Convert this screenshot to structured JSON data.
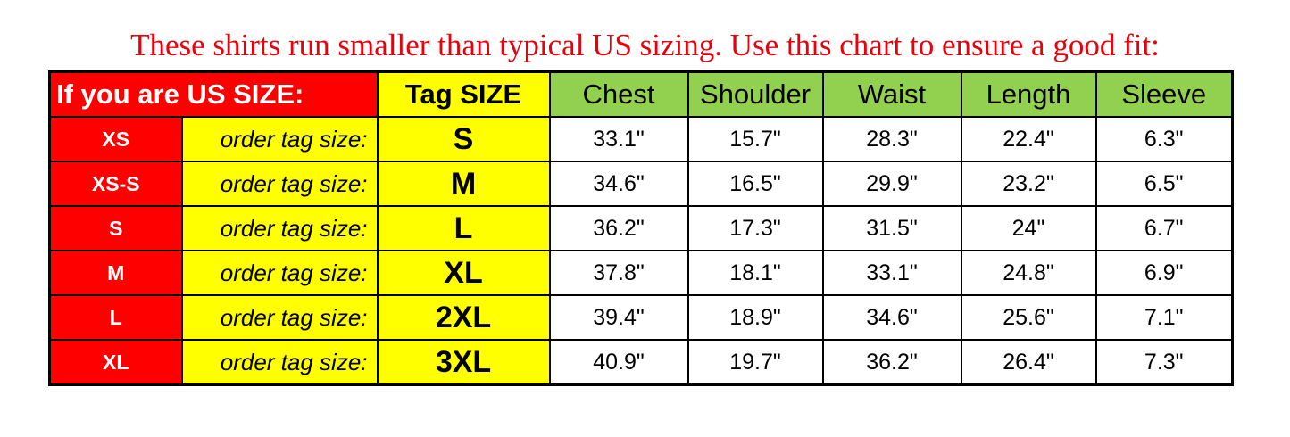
{
  "title": "These shirts run smaller than typical US sizing. Use this chart to ensure a good fit:",
  "header": {
    "us_size": "If you are US SIZE:",
    "tag_size": "Tag SIZE",
    "measurements": [
      "Chest",
      "Shoulder",
      "Waist",
      "Length",
      "Sleeve"
    ]
  },
  "order_label": "order tag size:",
  "rows": [
    {
      "us": "XS",
      "tag": "S",
      "values": [
        "33.1\"",
        "15.7\"",
        "28.3\"",
        "22.4\"",
        "6.3\""
      ]
    },
    {
      "us": "XS-S",
      "tag": "M",
      "values": [
        "34.6\"",
        "16.5\"",
        "29.9\"",
        "23.2\"",
        "6.5\""
      ]
    },
    {
      "us": "S",
      "tag": "L",
      "values": [
        "36.2\"",
        "17.3\"",
        "31.5\"",
        "24\"",
        "6.7\""
      ]
    },
    {
      "us": "M",
      "tag": "XL",
      "values": [
        "37.8\"",
        "18.1\"",
        "33.1\"",
        "24.8\"",
        "6.9\""
      ]
    },
    {
      "us": "L",
      "tag": "2XL",
      "values": [
        "39.4\"",
        "18.9\"",
        "34.6\"",
        "25.6\"",
        "7.1\""
      ]
    },
    {
      "us": "XL",
      "tag": "3XL",
      "values": [
        "40.9\"",
        "19.7\"",
        "36.2\"",
        "26.4\"",
        "7.3\""
      ]
    }
  ],
  "colors": {
    "title": "#e8000b",
    "us_column": "#ff0000",
    "tag_column": "#ffff00",
    "measurement_header": "#92d050"
  }
}
